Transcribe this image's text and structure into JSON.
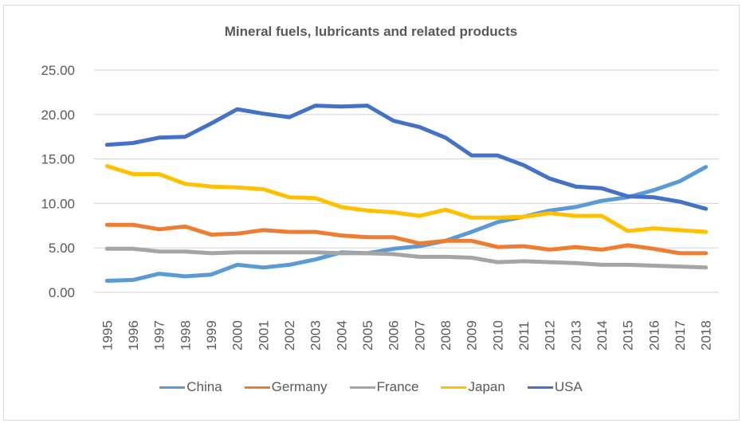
{
  "chart_data": {
    "type": "line",
    "title": "Mineral fuels, lubricants and related products",
    "xlabel": "",
    "ylabel": "",
    "ylim": [
      0,
      25
    ],
    "yticks": [
      "0.00",
      "5.00",
      "10.00",
      "15.00",
      "20.00",
      "25.00"
    ],
    "grid": true,
    "legend_position": "bottom",
    "x": [
      "1995",
      "1996",
      "1997",
      "1998",
      "1999",
      "2000",
      "2001",
      "2002",
      "2003",
      "2004",
      "2005",
      "2006",
      "2007",
      "2008",
      "2009",
      "2010",
      "2011",
      "2012",
      "2013",
      "2014",
      "2015",
      "2016",
      "2017",
      "2018"
    ],
    "series": [
      {
        "name": "China",
        "color": "#5b9bd5",
        "values": [
          1.3,
          1.4,
          2.1,
          1.8,
          2.0,
          3.1,
          2.8,
          3.1,
          3.7,
          4.5,
          4.4,
          4.9,
          5.2,
          5.8,
          6.8,
          7.9,
          8.5,
          9.2,
          9.6,
          10.3,
          10.7,
          11.5,
          12.5,
          14.1
        ]
      },
      {
        "name": "Germany",
        "color": "#ed7d31",
        "values": [
          7.6,
          7.6,
          7.1,
          7.4,
          6.5,
          6.6,
          7.0,
          6.8,
          6.8,
          6.4,
          6.2,
          6.2,
          5.5,
          5.8,
          5.8,
          5.1,
          5.2,
          4.8,
          5.1,
          4.8,
          5.3,
          4.9,
          4.4,
          4.4
        ]
      },
      {
        "name": "France",
        "color": "#a5a5a5",
        "values": [
          4.9,
          4.9,
          4.6,
          4.6,
          4.4,
          4.5,
          4.5,
          4.5,
          4.5,
          4.4,
          4.4,
          4.3,
          4.0,
          4.0,
          3.9,
          3.4,
          3.5,
          3.4,
          3.3,
          3.1,
          3.1,
          3.0,
          2.9,
          2.8
        ]
      },
      {
        "name": "Japan",
        "color": "#ffc000",
        "values": [
          14.2,
          13.3,
          13.3,
          12.2,
          11.9,
          11.8,
          11.6,
          10.7,
          10.6,
          9.6,
          9.2,
          9.0,
          8.6,
          9.3,
          8.4,
          8.4,
          8.5,
          8.9,
          8.6,
          8.6,
          6.9,
          7.2,
          7.0,
          6.8
        ]
      },
      {
        "name": "USA",
        "color": "#4472c4",
        "values": [
          16.6,
          16.8,
          17.4,
          17.5,
          19.0,
          20.6,
          20.1,
          19.7,
          21.0,
          20.9,
          21.0,
          19.3,
          18.6,
          17.4,
          15.4,
          15.4,
          14.3,
          12.8,
          11.9,
          11.7,
          10.8,
          10.7,
          10.2,
          9.4
        ]
      }
    ]
  }
}
